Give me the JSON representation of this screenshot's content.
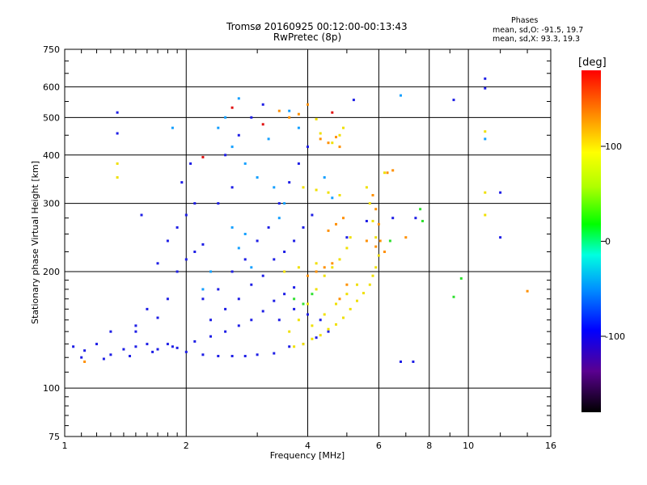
{
  "chart_data": {
    "type": "scatter",
    "title": "Tromsø 20160925 00:12:00-00:13:43",
    "subtitle": "RwPretec (8p)",
    "xlabel": "Frequency [MHz]",
    "ylabel": "Stationary phase Virtual Height [km]",
    "x_scale": "log",
    "y_scale": "log",
    "xlim": [
      1,
      16
    ],
    "ylim": [
      75,
      750
    ],
    "x_ticks": [
      "1",
      "2",
      "4",
      "6",
      "8",
      "10",
      "16"
    ],
    "y_ticks": [
      "75",
      "100",
      "200",
      "300",
      "400",
      "500",
      "600",
      "750"
    ],
    "grid": true,
    "stats": {
      "title": "Phases",
      "o_line": "mean, sd,O: -91.5, 19.7",
      "x_line": "mean, sd,X:  93.3, 19.3"
    },
    "colorbar": {
      "label": "[deg]",
      "range": [
        -180,
        180
      ],
      "ticks": [
        "100",
        "0",
        "-100"
      ],
      "tick_values": [
        100,
        0,
        -100
      ]
    },
    "series": [
      {
        "color": "#1e1ee6",
        "phase_deg": -100,
        "points": [
          [
            1.05,
            128
          ],
          [
            1.12,
            125
          ],
          [
            1.2,
            130
          ],
          [
            1.3,
            122
          ],
          [
            1.4,
            126
          ],
          [
            1.5,
            128
          ],
          [
            1.6,
            130
          ],
          [
            1.7,
            126
          ],
          [
            1.8,
            130
          ],
          [
            1.9,
            127
          ],
          [
            2.0,
            124
          ],
          [
            2.2,
            122
          ],
          [
            2.4,
            121
          ],
          [
            2.6,
            121
          ],
          [
            2.8,
            121
          ],
          [
            3.0,
            122
          ],
          [
            3.3,
            123
          ],
          [
            1.1,
            120
          ],
          [
            1.25,
            119
          ],
          [
            1.45,
            121
          ],
          [
            1.65,
            124
          ],
          [
            1.85,
            128
          ],
          [
            2.1,
            132
          ],
          [
            2.3,
            136
          ],
          [
            2.5,
            140
          ],
          [
            2.7,
            145
          ],
          [
            2.9,
            150
          ],
          [
            3.1,
            158
          ],
          [
            3.3,
            168
          ],
          [
            3.5,
            175
          ],
          [
            3.7,
            182
          ],
          [
            1.3,
            140
          ],
          [
            1.5,
            145
          ],
          [
            1.7,
            152
          ],
          [
            1.8,
            170
          ],
          [
            1.9,
            200
          ],
          [
            2.0,
            215
          ],
          [
            2.1,
            225
          ],
          [
            2.2,
            235
          ],
          [
            1.9,
            260
          ],
          [
            2.0,
            280
          ],
          [
            2.1,
            300
          ],
          [
            1.95,
            340
          ],
          [
            2.05,
            380
          ],
          [
            1.8,
            240
          ],
          [
            1.7,
            210
          ],
          [
            2.3,
            150
          ],
          [
            2.5,
            160
          ],
          [
            2.7,
            170
          ],
          [
            2.9,
            185
          ],
          [
            3.1,
            195
          ],
          [
            3.3,
            215
          ],
          [
            3.5,
            225
          ],
          [
            3.7,
            240
          ],
          [
            3.9,
            260
          ],
          [
            4.1,
            280
          ],
          [
            2.6,
            200
          ],
          [
            2.8,
            215
          ],
          [
            3.0,
            240
          ],
          [
            3.2,
            260
          ],
          [
            3.4,
            300
          ],
          [
            3.6,
            340
          ],
          [
            3.8,
            380
          ],
          [
            4.0,
            420
          ],
          [
            2.5,
            400
          ],
          [
            2.7,
            450
          ],
          [
            2.9,
            500
          ],
          [
            3.1,
            540
          ],
          [
            2.4,
            300
          ],
          [
            2.6,
            330
          ],
          [
            3.4,
            150
          ],
          [
            3.7,
            160
          ],
          [
            4.0,
            155
          ],
          [
            4.3,
            150
          ],
          [
            3.6,
            128
          ],
          [
            3.9,
            130
          ],
          [
            4.2,
            135
          ],
          [
            4.5,
            140
          ],
          [
            5.0,
            245
          ],
          [
            5.6,
            270
          ],
          [
            6.5,
            275
          ],
          [
            7.4,
            275
          ],
          [
            6.8,
            117
          ],
          [
            7.3,
            117
          ],
          [
            11.0,
            630
          ],
          [
            11.0,
            595
          ],
          [
            12.0,
            320
          ],
          [
            12.0,
            245
          ],
          [
            1.35,
            455
          ],
          [
            1.35,
            515
          ],
          [
            1.55,
            280
          ],
          [
            5.2,
            555
          ],
          [
            9.2,
            555
          ],
          [
            2.2,
            170
          ],
          [
            2.4,
            180
          ],
          [
            1.6,
            160
          ],
          [
            1.5,
            140
          ]
        ]
      },
      {
        "color": "#14a0ff",
        "phase_deg": -55,
        "points": [
          [
            2.5,
            500
          ],
          [
            2.7,
            560
          ],
          [
            2.6,
            420
          ],
          [
            2.8,
            380
          ],
          [
            3.0,
            350
          ],
          [
            2.4,
            470
          ],
          [
            2.6,
            260
          ],
          [
            2.8,
            250
          ],
          [
            3.3,
            330
          ],
          [
            3.5,
            300
          ],
          [
            3.4,
            275
          ],
          [
            2.7,
            230
          ],
          [
            2.9,
            205
          ],
          [
            3.6,
            520
          ],
          [
            6.8,
            570
          ],
          [
            11.0,
            440
          ],
          [
            1.85,
            470
          ],
          [
            3.2,
            440
          ],
          [
            3.8,
            470
          ],
          [
            2.3,
            200
          ],
          [
            4.4,
            350
          ],
          [
            4.6,
            310
          ],
          [
            2.2,
            180
          ]
        ]
      },
      {
        "color": "#f0e000",
        "phase_deg": 100,
        "points": [
          [
            3.7,
            128
          ],
          [
            3.9,
            130
          ],
          [
            4.1,
            134
          ],
          [
            4.3,
            137
          ],
          [
            4.5,
            142
          ],
          [
            4.7,
            146
          ],
          [
            4.9,
            152
          ],
          [
            5.1,
            160
          ],
          [
            5.3,
            168
          ],
          [
            5.5,
            176
          ],
          [
            5.7,
            185
          ],
          [
            5.8,
            195
          ],
          [
            5.9,
            205
          ],
          [
            6.0,
            220
          ],
          [
            5.9,
            245
          ],
          [
            5.8,
            270
          ],
          [
            5.7,
            300
          ],
          [
            5.6,
            330
          ],
          [
            3.6,
            140
          ],
          [
            3.8,
            150
          ],
          [
            4.0,
            165
          ],
          [
            4.2,
            180
          ],
          [
            4.4,
            195
          ],
          [
            4.6,
            205
          ],
          [
            4.8,
            215
          ],
          [
            5.0,
            230
          ],
          [
            5.1,
            245
          ],
          [
            4.1,
            145
          ],
          [
            4.4,
            155
          ],
          [
            4.7,
            165
          ],
          [
            5.0,
            175
          ],
          [
            5.3,
            185
          ],
          [
            3.5,
            200
          ],
          [
            3.8,
            205
          ],
          [
            4.2,
            210
          ],
          [
            3.9,
            330
          ],
          [
            4.2,
            325
          ],
          [
            4.5,
            320
          ],
          [
            4.8,
            315
          ],
          [
            4.6,
            430
          ],
          [
            4.8,
            450
          ],
          [
            4.9,
            470
          ],
          [
            4.3,
            455
          ],
          [
            1.35,
            350
          ],
          [
            1.35,
            380
          ],
          [
            11.0,
            280
          ],
          [
            11.0,
            320
          ],
          [
            11.0,
            460
          ],
          [
            4.2,
            495
          ],
          [
            6.2,
            360
          ]
        ]
      },
      {
        "color": "#ff9000",
        "phase_deg": 150,
        "points": [
          [
            4.3,
            440
          ],
          [
            4.5,
            430
          ],
          [
            4.7,
            445
          ],
          [
            4.8,
            420
          ],
          [
            3.4,
            520
          ],
          [
            3.6,
            500
          ],
          [
            3.8,
            510
          ],
          [
            4.0,
            540
          ],
          [
            6.3,
            360
          ],
          [
            6.5,
            365
          ],
          [
            5.8,
            315
          ],
          [
            5.9,
            290
          ],
          [
            6.0,
            265
          ],
          [
            6.05,
            240
          ],
          [
            4.5,
            255
          ],
          [
            4.7,
            265
          ],
          [
            4.9,
            275
          ],
          [
            5.6,
            240
          ],
          [
            5.9,
            232
          ],
          [
            6.2,
            225
          ],
          [
            7.0,
            245
          ],
          [
            14.0,
            178
          ],
          [
            1.12,
            117
          ],
          [
            4.0,
            195
          ],
          [
            4.2,
            200
          ],
          [
            4.4,
            205
          ],
          [
            4.6,
            210
          ],
          [
            5.0,
            185
          ],
          [
            4.8,
            170
          ]
        ]
      },
      {
        "color": "#30e030",
        "phase_deg": 20,
        "points": [
          [
            3.7,
            170
          ],
          [
            3.9,
            165
          ],
          [
            4.1,
            175
          ],
          [
            7.6,
            290
          ],
          [
            7.7,
            270
          ],
          [
            9.2,
            172
          ],
          [
            9.6,
            192
          ],
          [
            6.4,
            240
          ]
        ]
      },
      {
        "color": "#e01010",
        "phase_deg": 175,
        "points": [
          [
            2.6,
            530
          ],
          [
            4.6,
            515
          ],
          [
            3.1,
            480
          ],
          [
            2.2,
            395
          ]
        ]
      }
    ]
  }
}
